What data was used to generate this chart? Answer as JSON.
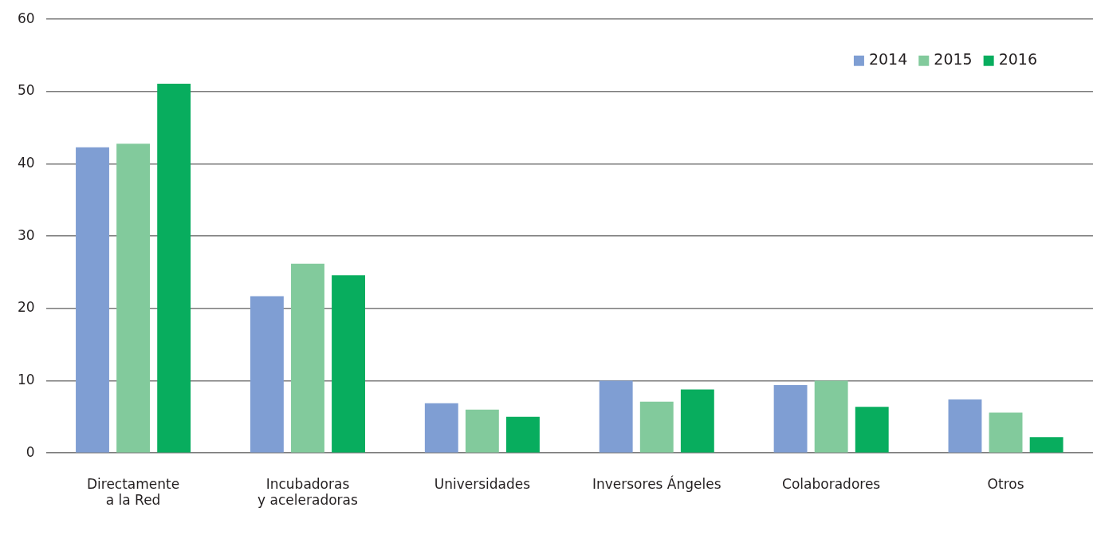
{
  "chart_data": {
    "type": "bar",
    "categories": [
      "Directamente\na la Red",
      "Incubadoras\ny aceleradoras",
      "Universidades",
      "Inversores Ángeles",
      "Colaboradores",
      "Otros"
    ],
    "series": [
      {
        "name": "2014",
        "color": "#7f9ed3",
        "values": [
          42.3,
          21.7,
          6.9,
          10.0,
          9.4,
          7.4
        ]
      },
      {
        "name": "2015",
        "color": "#82ca9c",
        "values": [
          42.8,
          26.2,
          6.0,
          7.1,
          10.0,
          5.6
        ]
      },
      {
        "name": "2016",
        "color": "#08ad5e",
        "values": [
          51.1,
          24.6,
          5.0,
          8.8,
          6.4,
          2.2
        ]
      }
    ],
    "ylim": [
      0,
      60
    ],
    "yticks": [
      0,
      10,
      20,
      30,
      40,
      50,
      60
    ],
    "grid": "y",
    "legend": "top right"
  }
}
